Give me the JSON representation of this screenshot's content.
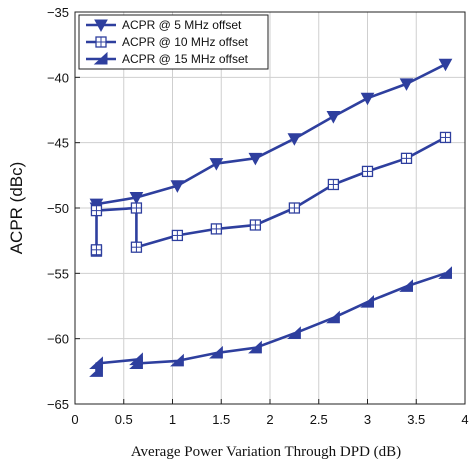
{
  "chart_data": {
    "type": "line",
    "xlabel": "Average Power Variation Through DPD (dB)",
    "ylabel": "ACPR (dBc)",
    "xlim": [
      0,
      4
    ],
    "ylim": [
      -65,
      -35
    ],
    "xticks": [
      "0",
      "0.5",
      "1",
      "1.5",
      "2",
      "2.5",
      "3",
      "3.5",
      "4"
    ],
    "yticks": [
      "−35",
      "−40",
      "−45",
      "−50",
      "−55",
      "−60",
      "−65"
    ],
    "grid": true,
    "legend_position": "top-left",
    "line_color": "#2e3f9e",
    "series": [
      {
        "name": "ACPR @ 5 MHz offset",
        "marker": "triangle-down",
        "points": [
          [
            0.22,
            -50.0
          ],
          [
            0.22,
            -49.7
          ],
          [
            0.63,
            -49.2
          ],
          [
            1.05,
            -48.3
          ],
          [
            1.45,
            -46.6
          ],
          [
            1.85,
            -46.2
          ],
          [
            2.25,
            -44.7
          ],
          [
            2.65,
            -43.0
          ],
          [
            3.0,
            -41.6
          ],
          [
            3.4,
            -40.5
          ],
          [
            3.8,
            -39.0
          ]
        ]
      },
      {
        "name": "ACPR @ 10 MHz offset",
        "marker": "square",
        "points": [
          [
            0.22,
            -53.3
          ],
          [
            0.22,
            -53.2
          ],
          [
            0.22,
            -50.2
          ],
          [
            0.63,
            -50.0
          ],
          [
            0.63,
            -53.0
          ],
          [
            1.05,
            -52.1
          ],
          [
            1.45,
            -51.6
          ],
          [
            1.85,
            -51.3
          ],
          [
            2.25,
            -50.0
          ],
          [
            2.65,
            -48.2
          ],
          [
            3.0,
            -47.2
          ],
          [
            3.4,
            -46.2
          ],
          [
            3.8,
            -44.6
          ]
        ]
      },
      {
        "name": "ACPR @ 15 MHz offset",
        "marker": "triangle-half",
        "points": [
          [
            0.22,
            -62.5
          ],
          [
            0.22,
            -61.9
          ],
          [
            0.63,
            -61.6
          ],
          [
            0.63,
            -61.9
          ],
          [
            1.05,
            -61.7
          ],
          [
            1.45,
            -61.1
          ],
          [
            1.85,
            -60.7
          ],
          [
            2.25,
            -59.6
          ],
          [
            2.65,
            -58.4
          ],
          [
            3.0,
            -57.2
          ],
          [
            3.4,
            -56.0
          ],
          [
            3.8,
            -55.0
          ]
        ]
      }
    ]
  }
}
